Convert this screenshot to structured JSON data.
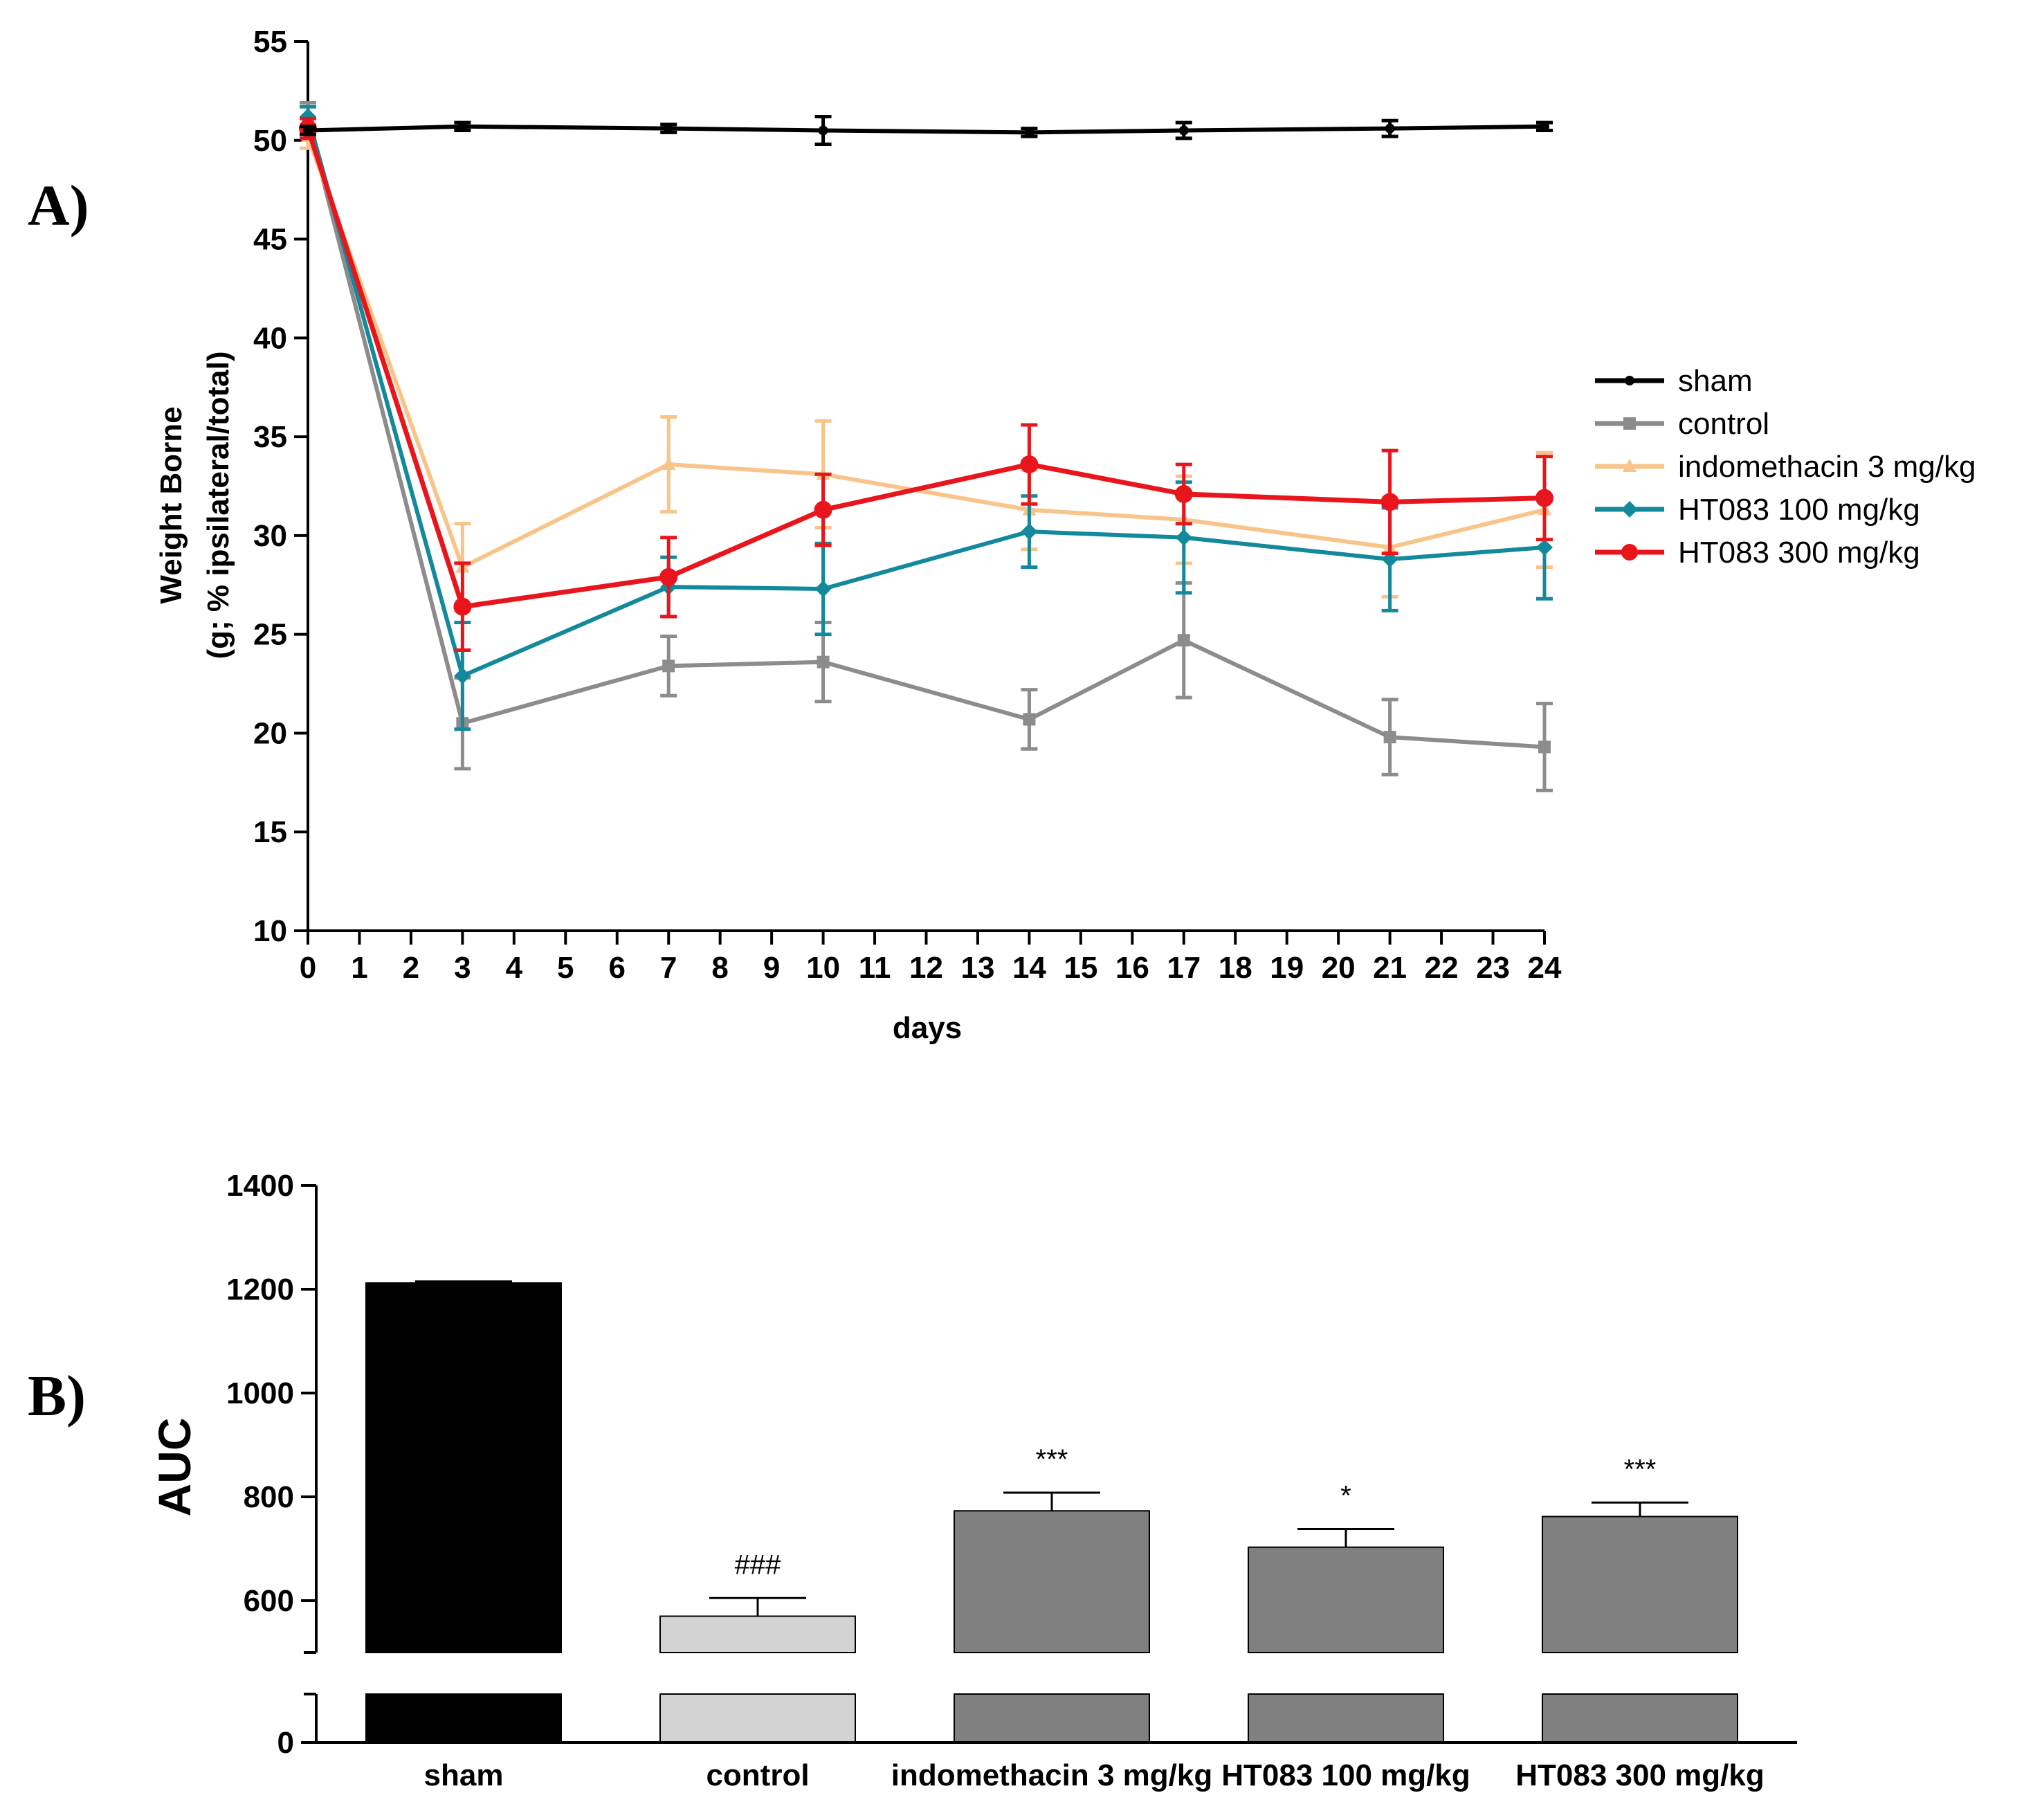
{
  "panels": {
    "a_label": "A)",
    "b_label": "B)"
  },
  "chart_data": [
    {
      "id": "A",
      "type": "line",
      "xlabel": "days",
      "ylabel_line1": "Weight Borne",
      "ylabel_line2": "(g; % ipsilateral/total)",
      "xlim": [
        0,
        24
      ],
      "ylim": [
        10,
        55
      ],
      "x_ticks": [
        0,
        1,
        2,
        3,
        4,
        5,
        6,
        7,
        8,
        9,
        10,
        11,
        12,
        13,
        14,
        15,
        16,
        17,
        18,
        19,
        20,
        21,
        22,
        23,
        24
      ],
      "y_ticks": [
        10,
        15,
        20,
        25,
        30,
        35,
        40,
        45,
        50,
        55
      ],
      "x": [
        0,
        3,
        7,
        10,
        14,
        17,
        21,
        24
      ],
      "series": [
        {
          "name": "sham",
          "color": "#000000",
          "marker": "circle",
          "values": [
            50.5,
            50.7,
            50.6,
            50.5,
            50.4,
            50.5,
            50.6,
            50.7
          ],
          "err": [
            0.2,
            0.2,
            0.2,
            0.7,
            0.2,
            0.4,
            0.4,
            0.2
          ]
        },
        {
          "name": "control",
          "color": "#8c8c8c",
          "marker": "square",
          "values": [
            51.0,
            20.5,
            23.4,
            23.6,
            20.7,
            24.7,
            19.8,
            19.3
          ],
          "err": [
            0.9,
            2.3,
            1.5,
            2.0,
            1.5,
            2.9,
            1.9,
            2.2
          ]
        },
        {
          "name": "indomethacin 3 mg/kg",
          "color": "#f9c48a",
          "marker": "triangle",
          "values": [
            50.2,
            28.4,
            33.6,
            33.1,
            31.3,
            30.8,
            29.4,
            31.3
          ],
          "err": [
            0.6,
            2.2,
            2.4,
            2.7,
            2.0,
            2.2,
            2.5,
            2.9
          ]
        },
        {
          "name": "HT083 100 mg/kg",
          "color": "#13899c",
          "marker": "diamond",
          "values": [
            51.2,
            22.9,
            27.4,
            27.3,
            30.2,
            29.9,
            28.8,
            29.4
          ],
          "err": [
            0.5,
            2.7,
            1.5,
            2.3,
            1.8,
            2.8,
            2.6,
            2.6
          ]
        },
        {
          "name": "HT083 300 mg/kg",
          "color": "#e8161c",
          "marker": "circle",
          "values": [
            50.6,
            26.4,
            27.9,
            31.3,
            33.6,
            32.1,
            31.7,
            31.9
          ],
          "err": [
            0.5,
            2.2,
            2.0,
            1.8,
            2.0,
            1.5,
            2.6,
            2.1
          ]
        }
      ]
    },
    {
      "id": "B",
      "type": "bar",
      "ylabel": "AUC",
      "categories": [
        "sham",
        "control",
        "indomethacin 3 mg/kg",
        "HT083 100 mg/kg",
        "HT083 300 mg/kg"
      ],
      "values": [
        1212,
        570,
        773,
        703,
        762
      ],
      "err": [
        3,
        35,
        35,
        35,
        27
      ],
      "colors": [
        "#000000",
        "#d3d3d3",
        "#808080",
        "#808080",
        "#808080"
      ],
      "annotations": [
        "",
        "###",
        "***",
        "*",
        "***"
      ],
      "y_ticks": [
        0,
        600,
        800,
        1000,
        1200,
        1400
      ],
      "ylim_upper": [
        500,
        1400
      ],
      "ylim_lower": [
        0,
        100
      ],
      "axis_break": true
    }
  ]
}
